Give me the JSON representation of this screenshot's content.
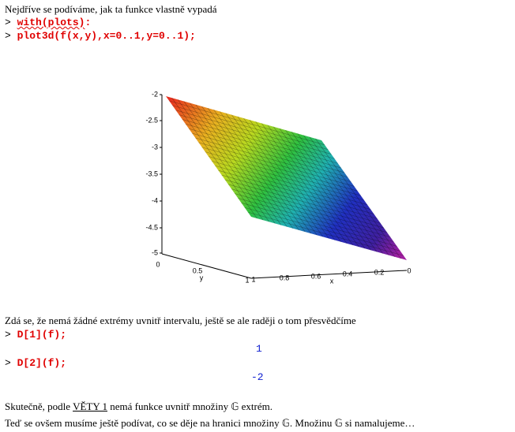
{
  "intro": "Nejdříve se podíváme, jak ta funkce vlastně vypadá",
  "inputs": [
    {
      "prompt": ">",
      "parts": [
        "with(plots)",
        ":"
      ]
    },
    {
      "prompt": ">",
      "parts": [
        "plot3d(f(x,y),x=0..1,y=0..1);"
      ]
    },
    {
      "prompt": ">",
      "parts": [
        "D[1](f);"
      ]
    },
    {
      "prompt": ">",
      "parts": [
        "D[2](f);"
      ]
    }
  ],
  "plot": {
    "z_ticks": [
      "-2",
      "-2.5",
      "-3",
      "-3.5",
      "-4",
      "-4.5",
      "-5"
    ],
    "y_ticks": [
      "0",
      "0.5",
      "1"
    ],
    "y_label": "y",
    "x_ticks": [
      "1",
      "0.8",
      "0.6",
      "0.4",
      "0.2",
      "0"
    ],
    "x_label": "x"
  },
  "remark": "Zdá se, že nemá žádné extrémy uvnitř intervalu, ještě se ale raději o tom přesvědčíme",
  "outputs": [
    "1",
    "-2"
  ],
  "conclusion": {
    "before": "Skutečně, podle ",
    "link": "VĚTY 1",
    "after": " nemá funkce uvnitř množiny 𝔾 extrém."
  },
  "next": "Teď se ovšem musíme ještě podívat, co se děje na hranici množiny 𝔾. Množinu 𝔾 si namalujeme…"
}
